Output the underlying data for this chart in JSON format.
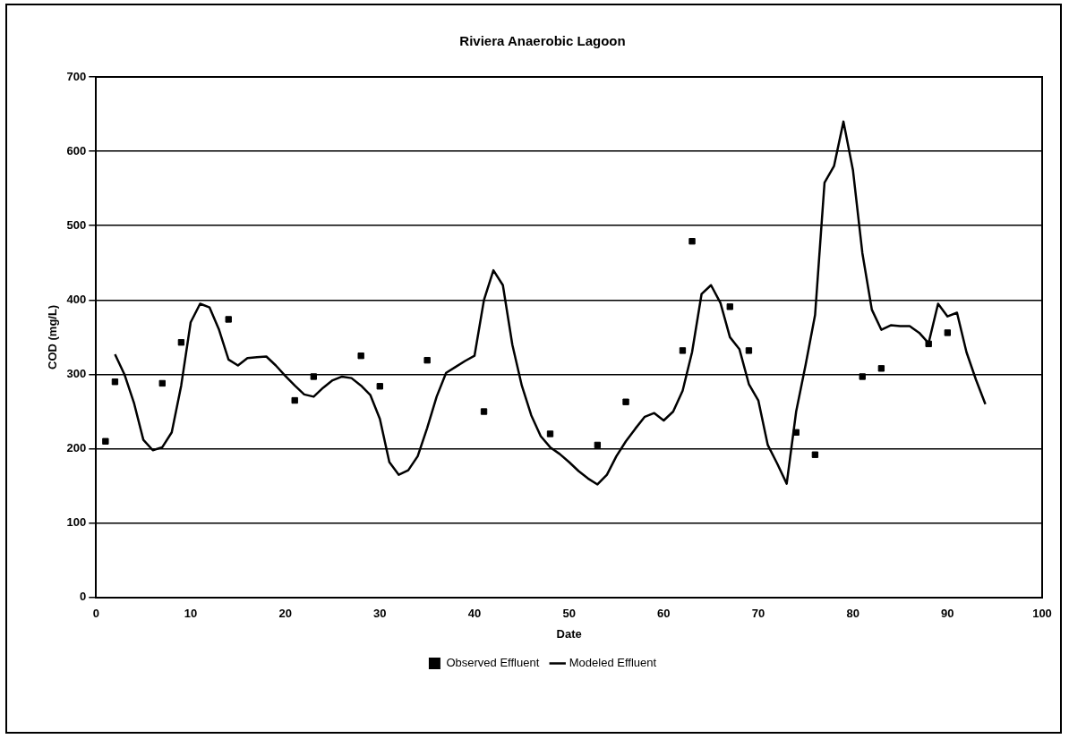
{
  "chart_data": {
    "type": "scatter",
    "title": "Riviera Anaerobic Lagoon",
    "xlabel": "Date",
    "ylabel": "COD (mg/L)",
    "xlim": [
      0,
      100
    ],
    "xticks": [
      0,
      10,
      20,
      30,
      40,
      50,
      60,
      70,
      80,
      90,
      100
    ],
    "ylim": [
      0,
      700
    ],
    "yticks": [
      0,
      100,
      200,
      300,
      400,
      500,
      600,
      700
    ],
    "grid": "y",
    "legend": "bottom",
    "series": [
      {
        "name": "Observed Effluent",
        "marker": "square",
        "color": "#000000",
        "x": [
          1,
          2,
          7,
          9,
          14,
          21,
          23,
          28,
          30,
          35,
          41,
          48,
          53,
          56,
          62,
          63,
          67,
          69,
          74,
          76,
          81,
          83,
          88,
          90
        ],
        "values": [
          210,
          290,
          288,
          343,
          374,
          265,
          297,
          325,
          284,
          319,
          250,
          220,
          205,
          263,
          332,
          479,
          391,
          332,
          222,
          192,
          297,
          308,
          341,
          356
        ]
      },
      {
        "name": "Modeled Effluent",
        "type": "line",
        "marker": "none",
        "line_style": "solid",
        "color": "#000000",
        "x": [
          2,
          3,
          4,
          5,
          6,
          7,
          8,
          9,
          10,
          11,
          12,
          13,
          14,
          15,
          16,
          17,
          18,
          19,
          20,
          21,
          22,
          23,
          24,
          25,
          26,
          27,
          28,
          29,
          30,
          31,
          32,
          33,
          34,
          35,
          36,
          37,
          38,
          39,
          40,
          41,
          42,
          43,
          44,
          45,
          46,
          47,
          48,
          49,
          50,
          51,
          52,
          53,
          54,
          55,
          56,
          57,
          58,
          59,
          60,
          61,
          62,
          63,
          64,
          65,
          66,
          67,
          68,
          69,
          70,
          71,
          72,
          73,
          74,
          75,
          76,
          77,
          78,
          79,
          80,
          81,
          82,
          83,
          84,
          85,
          86,
          87,
          88,
          89,
          90,
          91,
          92,
          93,
          94
        ],
        "values": [
          327,
          300,
          262,
          212,
          198,
          202,
          222,
          285,
          370,
          395,
          390,
          360,
          320,
          312,
          322,
          323,
          324,
          312,
          298,
          285,
          273,
          270,
          282,
          292,
          297,
          295,
          285,
          272,
          240,
          182,
          165,
          171,
          190,
          228,
          270,
          302,
          310,
          318,
          325,
          400,
          440,
          420,
          340,
          285,
          245,
          217,
          202,
          193,
          182,
          170,
          160,
          152,
          165,
          190,
          210,
          227,
          243,
          248,
          238,
          250,
          278,
          330,
          408,
          420,
          396,
          350,
          334,
          287,
          265,
          205,
          180,
          153,
          250,
          313,
          380,
          558,
          580,
          640,
          575,
          463,
          387,
          360,
          366,
          365,
          365,
          356,
          342,
          395,
          378,
          383,
          330,
          293,
          260
        ]
      }
    ]
  }
}
